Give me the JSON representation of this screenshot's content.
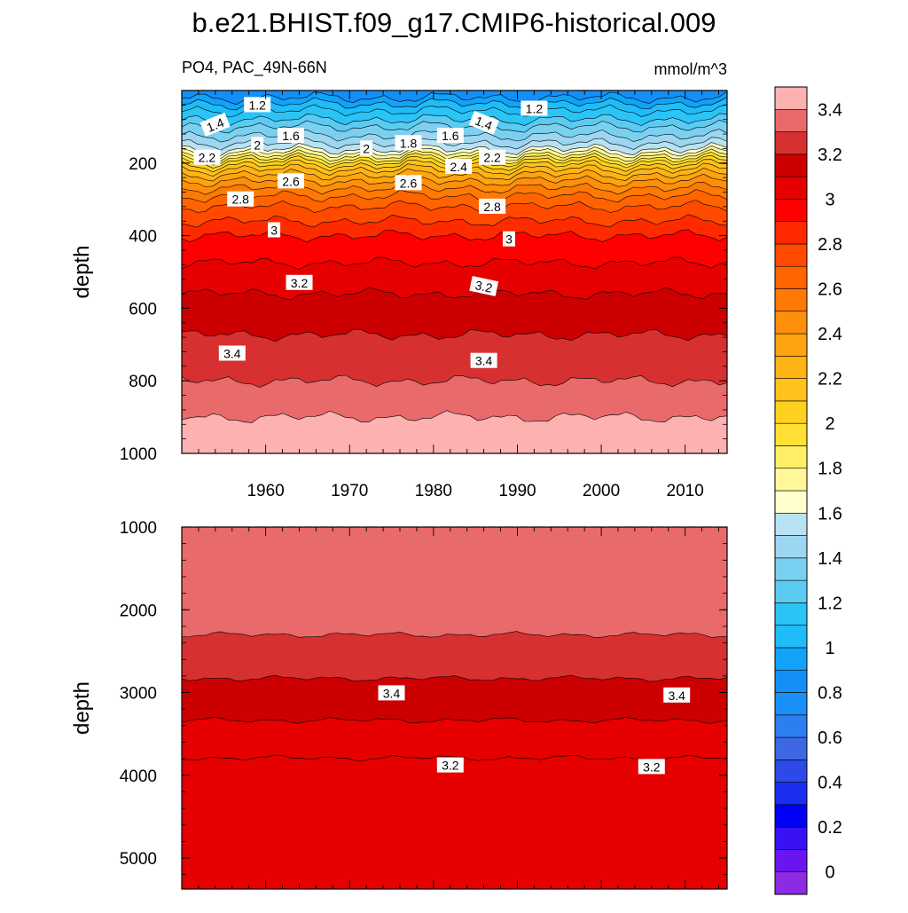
{
  "chart_data": {
    "type": "heatmap",
    "title": "b.e21.BHIST.f09_g17.CMIP6-historical.009",
    "left_subtitle": "PO4, PAC_49N-66N",
    "right_subtitle": "mmol/m^3",
    "ylabel": "depth",
    "xlim": [
      1950,
      2015
    ],
    "x_ticks": [
      1960,
      1970,
      1980,
      1990,
      2000,
      2010
    ],
    "colorbar": {
      "levels": [
        0,
        0.1,
        0.2,
        0.3,
        0.4,
        0.5,
        0.6,
        0.7,
        0.8,
        0.9,
        1.0,
        1.1,
        1.2,
        1.3,
        1.4,
        1.5,
        1.6,
        1.7,
        1.8,
        1.9,
        2.0,
        2.1,
        2.2,
        2.3,
        2.4,
        2.5,
        2.6,
        2.7,
        2.8,
        2.9,
        3.0,
        3.1,
        3.2,
        3.3,
        3.4,
        3.5
      ],
      "colors": [
        "#8c2be2",
        "#6a15f0",
        "#3a10f5",
        "#0000f6",
        "#1a2ef0",
        "#2c4ae8",
        "#3d67e3",
        "#2b7ff0",
        "#1a8ff6",
        "#148ff8",
        "#10a3f8",
        "#1ebcf8",
        "#2bc4f6",
        "#5ccbf2",
        "#7ad0f0",
        "#9dd6f0",
        "#b8e2f4",
        "#ffffcc",
        "#fff799",
        "#ffee66",
        "#ffe033",
        "#ffd11f",
        "#ffc21a",
        "#ffb414",
        "#ffa30f",
        "#ff8f0a",
        "#ff7a05",
        "#ff6400",
        "#ff4a00",
        "#ff2a00",
        "#ff0000",
        "#e60000",
        "#cc0000",
        "#d73030",
        "#e86a6a",
        "#fdb1b1"
      ],
      "tick_labels": [
        "0",
        "0.2",
        "0.4",
        "0.6",
        "0.8",
        "1",
        "1.2",
        "1.4",
        "1.6",
        "1.8",
        "2",
        "2.2",
        "2.4",
        "2.6",
        "2.8",
        "3",
        "3.2",
        "3.4"
      ]
    },
    "panels": [
      {
        "name": "upper",
        "ylim": [
          0,
          1000
        ],
        "y_ticks": [
          200,
          400,
          600,
          800,
          1000
        ],
        "x_tick_labels_shown": true,
        "profile_depths": [
          5,
          20,
          40,
          60,
          80,
          100,
          120,
          140,
          160,
          180,
          200,
          220,
          240,
          260,
          280,
          300,
          330,
          360,
          400,
          450,
          500,
          560,
          620,
          700,
          800,
          900,
          1000
        ],
        "profile_values": [
          0.95,
          1.0,
          1.12,
          1.22,
          1.3,
          1.4,
          1.48,
          1.57,
          1.68,
          1.9,
          2.15,
          2.32,
          2.45,
          2.56,
          2.65,
          2.74,
          2.83,
          2.9,
          3.0,
          3.07,
          3.13,
          3.2,
          3.26,
          3.32,
          3.4,
          3.5,
          3.55
        ],
        "contour_labels": [
          {
            "text": "1.2",
            "x": 1959,
            "y": 40,
            "rot": 0
          },
          {
            "text": "1.2",
            "x": 1992,
            "y": 50,
            "rot": 0
          },
          {
            "text": "1.4",
            "x": 1954,
            "y": 95,
            "rot": -22
          },
          {
            "text": "1.4",
            "x": 1986,
            "y": 90,
            "rot": 22
          },
          {
            "text": "1.6",
            "x": 1963,
            "y": 125,
            "rot": 0
          },
          {
            "text": "1.6",
            "x": 1982,
            "y": 125,
            "rot": 0
          },
          {
            "text": "1.8",
            "x": 1977,
            "y": 145,
            "rot": 0
          },
          {
            "text": "2",
            "x": 1959,
            "y": 150,
            "rot": 0
          },
          {
            "text": "2",
            "x": 1972,
            "y": 160,
            "rot": 0
          },
          {
            "text": "2.2",
            "x": 1953,
            "y": 185,
            "rot": 0
          },
          {
            "text": "2.2",
            "x": 1987,
            "y": 185,
            "rot": 0
          },
          {
            "text": "2.4",
            "x": 1983,
            "y": 210,
            "rot": 0
          },
          {
            "text": "2.6",
            "x": 1963,
            "y": 250,
            "rot": 0
          },
          {
            "text": "2.6",
            "x": 1977,
            "y": 255,
            "rot": 0
          },
          {
            "text": "2.8",
            "x": 1957,
            "y": 300,
            "rot": 0
          },
          {
            "text": "2.8",
            "x": 1987,
            "y": 320,
            "rot": 0
          },
          {
            "text": "3",
            "x": 1961,
            "y": 385,
            "rot": 0
          },
          {
            "text": "3",
            "x": 1989,
            "y": 410,
            "rot": 0
          },
          {
            "text": "3.2",
            "x": 1964,
            "y": 530,
            "rot": 0
          },
          {
            "text": "3.2",
            "x": 1986,
            "y": 540,
            "rot": 12
          },
          {
            "text": "3.4",
            "x": 1956,
            "y": 725,
            "rot": 0
          },
          {
            "text": "3.4",
            "x": 1986,
            "y": 745,
            "rot": 0
          }
        ]
      },
      {
        "name": "lower",
        "ylim": [
          1000,
          5375
        ],
        "y_ticks": [
          1000,
          2000,
          3000,
          4000,
          5000
        ],
        "x_tick_labels_shown": false,
        "profile_depths": [
          1000,
          2200,
          2660,
          3000,
          3480,
          3880,
          5375
        ],
        "profile_values": [
          3.55,
          3.52,
          3.43,
          3.37,
          3.27,
          3.18,
          3.1
        ],
        "contour_labels": [
          {
            "text": "3.4",
            "x": 1975,
            "y": 3010,
            "rot": 0
          },
          {
            "text": "3.4",
            "x": 2009,
            "y": 3035,
            "rot": 0
          },
          {
            "text": "3.2",
            "x": 1982,
            "y": 3880,
            "rot": 0
          },
          {
            "text": "3.2",
            "x": 2006,
            "y": 3900,
            "rot": 0
          }
        ]
      }
    ]
  }
}
